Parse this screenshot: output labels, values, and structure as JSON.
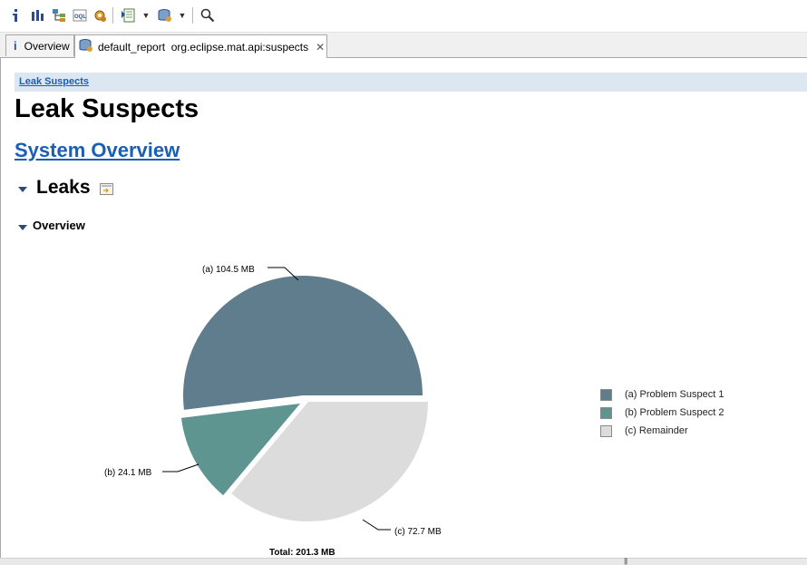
{
  "toolbar": {
    "icons": [
      "info-icon",
      "histogram-icon",
      "dominator-tree-icon",
      "oql-icon",
      "heap-dump-overview-icon",
      "run-report-icon",
      "query-browser-icon",
      "find-object-icon"
    ]
  },
  "tabs": [
    {
      "label": "Overview",
      "icon": "info-icon"
    },
    {
      "label": "default_report  org.eclipse.mat.api:suspects",
      "icon": "heap-report-icon"
    }
  ],
  "page": {
    "breadcrumb": "Leak Suspects",
    "title": "Leak Suspects",
    "system_overview_link": "System Overview",
    "leaks_heading": "Leaks",
    "overview_heading": "Overview"
  },
  "chart_data": {
    "type": "pie",
    "slices": [
      {
        "key": "(a)",
        "label": "Problem Suspect 1",
        "value": 104.5,
        "value_label": "104.5 MB",
        "color": "#5f7d8c"
      },
      {
        "key": "(b)",
        "label": "Problem Suspect 2",
        "value": 24.1,
        "value_label": "24.1 MB",
        "color": "#5e9590"
      },
      {
        "key": "(c)",
        "label": "Remainder",
        "value": 72.7,
        "value_label": "72.7 MB",
        "color": "#dcdcdc"
      }
    ],
    "total_label": "Total: 201.3 MB",
    "legend_position": "right"
  }
}
